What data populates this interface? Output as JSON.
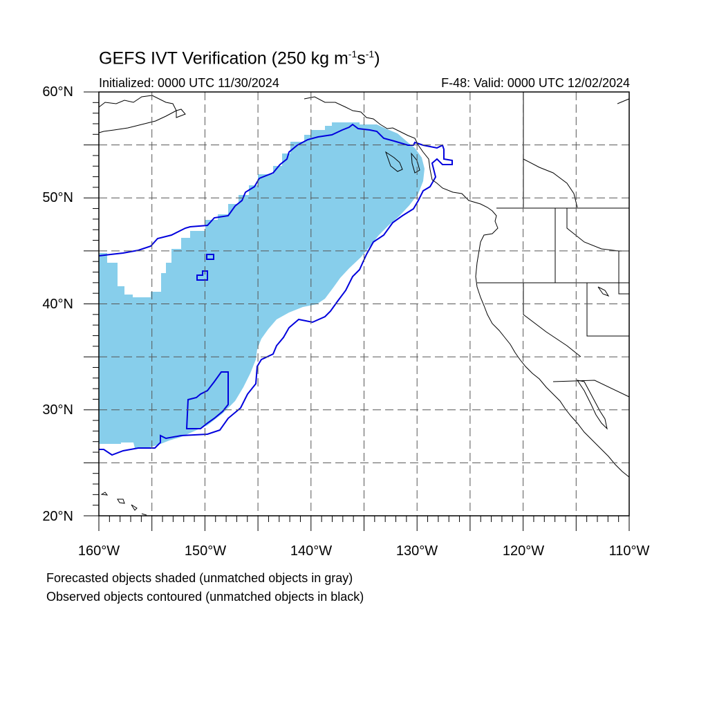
{
  "title_main": "GEFS IVT Verification (250 kg m",
  "title_exp1": "-1",
  "title_mid": "s",
  "title_exp2": "-1",
  "title_end": ")",
  "initialized": "Initialized: 0000 UTC 11/30/2024",
  "valid": "F-48: Valid: 0000 UTC 12/02/2024",
  "lat_labels": [
    "60°N",
    "50°N",
    "40°N",
    "30°N",
    "20°N"
  ],
  "lon_labels": [
    "160°W",
    "150°W",
    "140°W",
    "130°W",
    "120°W",
    "110°W"
  ],
  "note_forecast": "Forecasted objects shaded (unmatched objects in gray)",
  "note_observed": "Observed objects contoured (unmatched objects in black)",
  "map": {
    "lon_range": [
      -160,
      -110
    ],
    "lat_range": [
      20,
      60
    ],
    "grid_step_deg": 5,
    "grid_style": "dashed",
    "forecast_color": "#87ceeb",
    "observed_color": "#0000dd",
    "coast_color": "#000000"
  }
}
